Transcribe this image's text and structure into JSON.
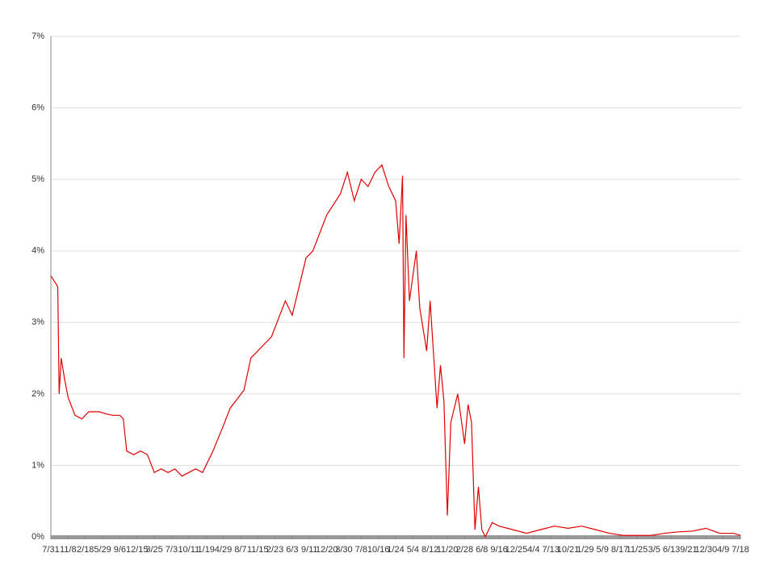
{
  "chart_data": {
    "type": "line",
    "x": [
      0,
      10,
      12,
      15,
      20,
      25,
      35,
      45,
      55,
      70,
      80,
      90,
      100,
      105,
      110,
      120,
      130,
      140,
      150,
      160,
      170,
      180,
      190,
      200,
      210,
      220,
      235,
      250,
      260,
      280,
      290,
      310,
      320,
      340,
      350,
      370,
      380,
      400,
      420,
      430,
      440,
      450,
      460,
      470,
      480,
      490,
      500,
      505,
      510,
      512,
      515,
      520,
      530,
      535,
      545,
      550,
      560,
      565,
      570,
      575,
      580,
      590,
      600,
      605,
      610,
      615,
      620,
      625,
      630,
      640,
      650,
      670,
      690,
      710,
      730,
      750,
      770,
      790,
      810,
      830,
      850,
      870,
      890,
      910,
      930,
      950,
      970,
      990,
      1000
    ],
    "series": [
      {
        "color": "#e00000",
        "values": [
          3.65,
          3.5,
          2.0,
          2.5,
          2.2,
          1.95,
          1.7,
          1.65,
          1.75,
          1.75,
          1.72,
          1.7,
          1.7,
          1.65,
          1.2,
          1.15,
          1.2,
          1.15,
          0.9,
          0.95,
          0.9,
          0.95,
          0.85,
          0.9,
          0.95,
          0.9,
          1.2,
          1.55,
          1.8,
          2.05,
          2.5,
          2.7,
          2.8,
          3.3,
          3.1,
          3.9,
          4.0,
          4.5,
          4.8,
          5.1,
          4.7,
          5.0,
          4.9,
          5.1,
          5.2,
          4.9,
          4.7,
          4.1,
          5.05,
          2.5,
          4.5,
          3.3,
          4.0,
          3.2,
          2.6,
          3.3,
          1.8,
          2.4,
          1.9,
          0.3,
          1.6,
          2.0,
          1.3,
          1.85,
          1.6,
          0.1,
          0.7,
          0.1,
          0.0,
          0.2,
          0.15,
          0.1,
          0.05,
          0.1,
          0.15,
          0.12,
          0.15,
          0.1,
          0.05,
          0.02,
          0.02,
          0.02,
          0.05,
          0.07,
          0.08,
          0.12,
          0.05,
          0.05,
          0.02
        ]
      }
    ],
    "xlim": [
      0,
      1000
    ],
    "xticks": [
      {
        "value": 0,
        "label": "7/31"
      },
      {
        "value": 25,
        "label": "11/8"
      },
      {
        "value": 50,
        "label": "2/18"
      },
      {
        "value": 75,
        "label": "5/29"
      },
      {
        "value": 100,
        "label": "9/6"
      },
      {
        "value": 125,
        "label": "12/15"
      },
      {
        "value": 150,
        "label": "3/25"
      },
      {
        "value": 175,
        "label": "7/3"
      },
      {
        "value": 200,
        "label": "10/11"
      },
      {
        "value": 225,
        "label": "1/19"
      },
      {
        "value": 250,
        "label": "4/29"
      },
      {
        "value": 275,
        "label": "8/7"
      },
      {
        "value": 300,
        "label": "11/15"
      },
      {
        "value": 325,
        "label": "2/23"
      },
      {
        "value": 350,
        "label": "6/3"
      },
      {
        "value": 375,
        "label": "9/11"
      },
      {
        "value": 400,
        "label": "12/20"
      },
      {
        "value": 425,
        "label": "3/30"
      },
      {
        "value": 450,
        "label": "7/8"
      },
      {
        "value": 475,
        "label": "10/16"
      },
      {
        "value": 500,
        "label": "1/24"
      },
      {
        "value": 525,
        "label": "5/4"
      },
      {
        "value": 550,
        "label": "8/12"
      },
      {
        "value": 575,
        "label": "11/20"
      },
      {
        "value": 600,
        "label": "2/28"
      },
      {
        "value": 625,
        "label": "6/8"
      },
      {
        "value": 650,
        "label": "9/16"
      },
      {
        "value": 675,
        "label": "12/25"
      },
      {
        "value": 700,
        "label": "4/4"
      },
      {
        "value": 725,
        "label": "7/13"
      },
      {
        "value": 750,
        "label": "10/21"
      },
      {
        "value": 775,
        "label": "1/29"
      },
      {
        "value": 800,
        "label": "5/9"
      },
      {
        "value": 825,
        "label": "8/17"
      },
      {
        "value": 850,
        "label": "11/25"
      },
      {
        "value": 875,
        "label": "3/5"
      },
      {
        "value": 900,
        "label": "6/13"
      },
      {
        "value": 925,
        "label": "9/21"
      },
      {
        "value": 950,
        "label": "12/30"
      },
      {
        "value": 975,
        "label": "4/9"
      },
      {
        "value": 1000,
        "label": "7/18"
      }
    ],
    "ylim": [
      0,
      7
    ],
    "yticks": [
      {
        "value": 0,
        "label": "0%"
      },
      {
        "value": 1,
        "label": "1%"
      },
      {
        "value": 2,
        "label": "2%"
      },
      {
        "value": 3,
        "label": "3%"
      },
      {
        "value": 4,
        "label": "4%"
      },
      {
        "value": 5,
        "label": "5%"
      },
      {
        "value": 6,
        "label": "6%"
      },
      {
        "value": 7,
        "label": "7%"
      }
    ],
    "grid": true
  }
}
